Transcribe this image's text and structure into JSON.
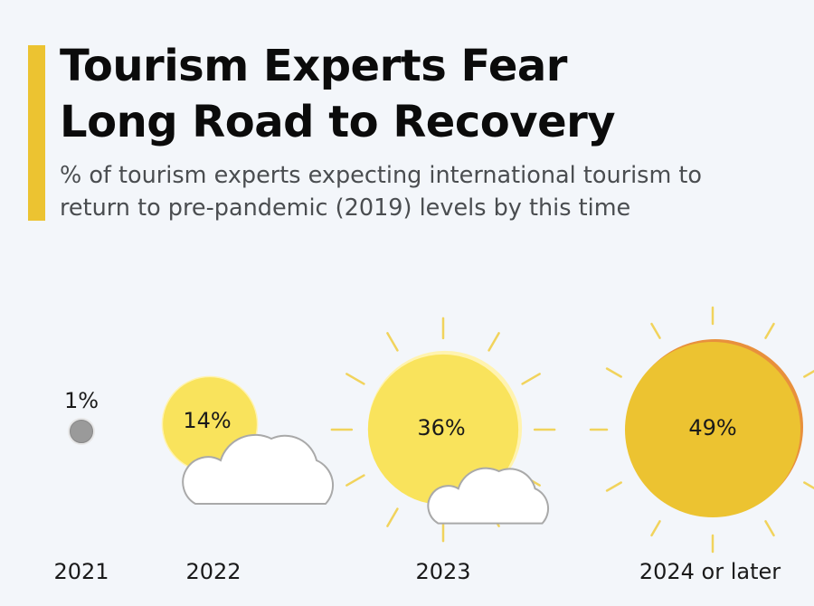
{
  "title_line1": "Tourism Experts Fear",
  "title_line2": "Long Road to Recovery",
  "subtitle_line1": "% of tourism experts expecting international tourism to",
  "subtitle_line2": "return to pre-pandemic (2019) levels by this time",
  "colors": {
    "accent": "#ecc331",
    "sun_light": "#f9e35c",
    "sun_dark": "#ecc331",
    "sun_edge": "#e8903c",
    "ray": "#f1d35c",
    "cloud_stroke": "#a9a9a9",
    "moon": "#9a9a9a"
  },
  "chart_data": {
    "type": "bubble",
    "title": "Tourism Experts Fear Long Road to Recovery",
    "subtitle": "% of tourism experts expecting international tourism to return to pre-pandemic (2019) levels by this time",
    "categories": [
      "2021",
      "2022",
      "2023",
      "2024 or later"
    ],
    "values": [
      1,
      14,
      36,
      49
    ],
    "labels": [
      "1%",
      "14%",
      "36%",
      "49%"
    ],
    "icons": [
      "moon-icon",
      "sun-behind-cloud-icon",
      "sun-small-cloud-icon",
      "sun-icon"
    ]
  }
}
